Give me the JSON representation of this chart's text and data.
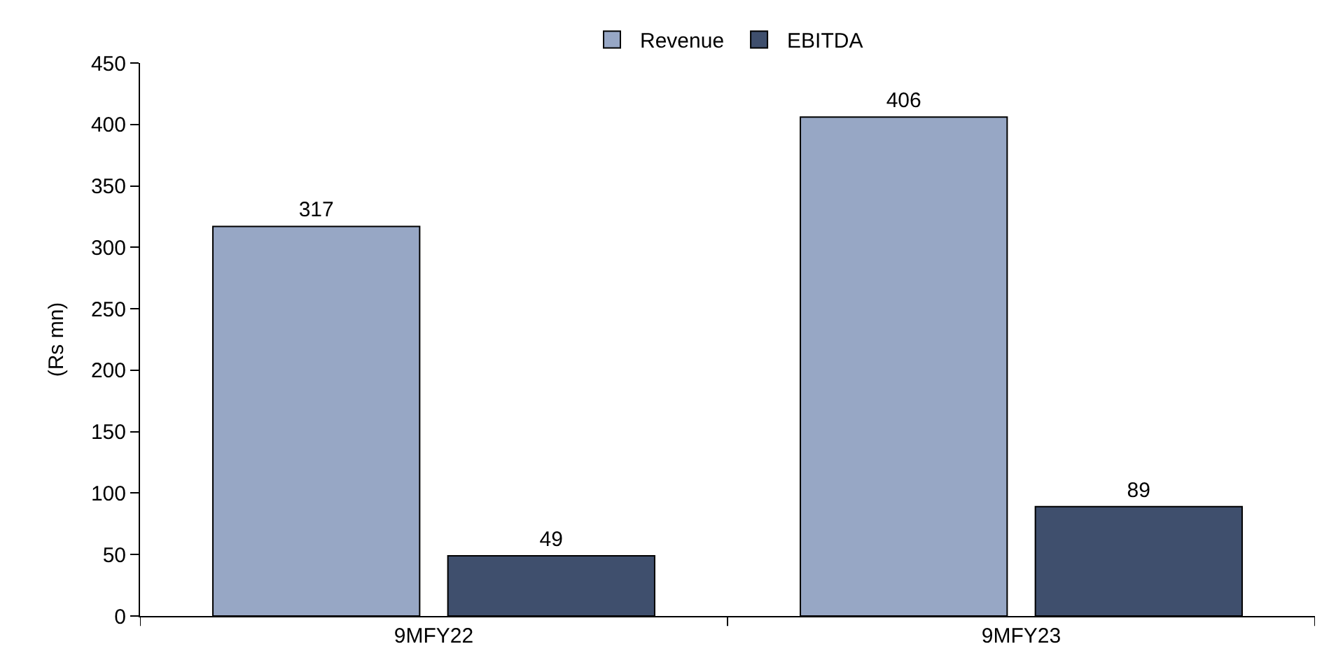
{
  "chart_data": {
    "type": "bar",
    "ylabel": "(Rs mn)",
    "categories": [
      "9MFY22",
      "9MFY23"
    ],
    "series": [
      {
        "name": "Revenue",
        "color": "#97a7c5",
        "values": [
          317,
          406
        ]
      },
      {
        "name": "EBITDA",
        "color": "#3f4f6d",
        "values": [
          49,
          89
        ]
      }
    ],
    "ylim": [
      0,
      450
    ],
    "yticks": [
      0,
      50,
      100,
      150,
      200,
      250,
      300,
      350,
      400,
      450
    ],
    "data_labels": true,
    "legend": "top",
    "grid": false
  }
}
